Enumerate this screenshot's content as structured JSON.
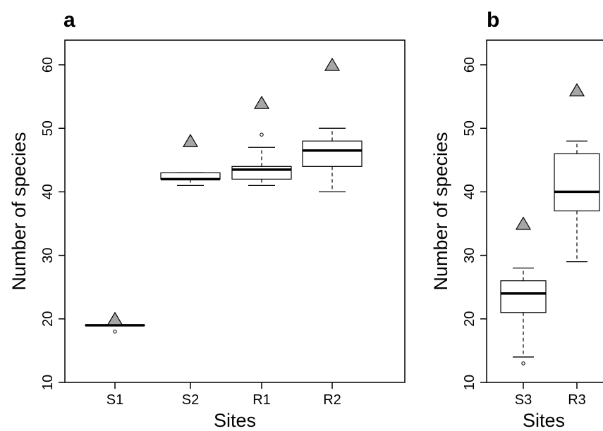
{
  "chart_data": [
    {
      "panel": "a",
      "type": "box",
      "xlabel": "Sites",
      "ylabel": "Number of species",
      "ylim": [
        10,
        63
      ],
      "yticks": [
        10,
        20,
        30,
        40,
        50,
        60
      ],
      "categories": [
        "S1",
        "S2",
        "R1",
        "R2"
      ],
      "boxes": [
        {
          "category": "S1",
          "whisker_low": 19,
          "q1": 19,
          "median": 19,
          "q3": 19,
          "whisker_high": 19,
          "outliers": [
            18
          ]
        },
        {
          "category": "S2",
          "whisker_low": 41,
          "q1": 42,
          "median": 42,
          "q3": 43,
          "whisker_high": 43,
          "outliers": []
        },
        {
          "category": "R1",
          "whisker_low": 41,
          "q1": 42,
          "median": 43.5,
          "q3": 44,
          "whisker_high": 47,
          "outliers": [
            49
          ]
        },
        {
          "category": "R2",
          "whisker_low": 40,
          "q1": 44,
          "median": 46.5,
          "q3": 48,
          "whisker_high": 50,
          "outliers": []
        }
      ],
      "triangles": [
        20,
        48,
        54,
        60
      ],
      "box_fill": "#ffffff",
      "triangle_color": "#a6a6a6"
    },
    {
      "panel": "b",
      "type": "box",
      "xlabel": "Sites",
      "ylabel": "Number of species",
      "ylim": [
        10,
        63
      ],
      "yticks": [
        10,
        20,
        30,
        40,
        50,
        60
      ],
      "categories": [
        "S3",
        "R3"
      ],
      "boxes": [
        {
          "category": "S3",
          "whisker_low": 14,
          "q1": 21,
          "median": 24,
          "q3": 26,
          "whisker_high": 28,
          "outliers": [
            13
          ]
        },
        {
          "category": "R3",
          "whisker_low": 29,
          "q1": 37,
          "median": 40,
          "q3": 46,
          "whisker_high": 48,
          "outliers": []
        }
      ],
      "triangles": [
        35,
        56
      ],
      "box_fill": "#ffffff",
      "triangle_color": "#a6a6a6"
    }
  ]
}
